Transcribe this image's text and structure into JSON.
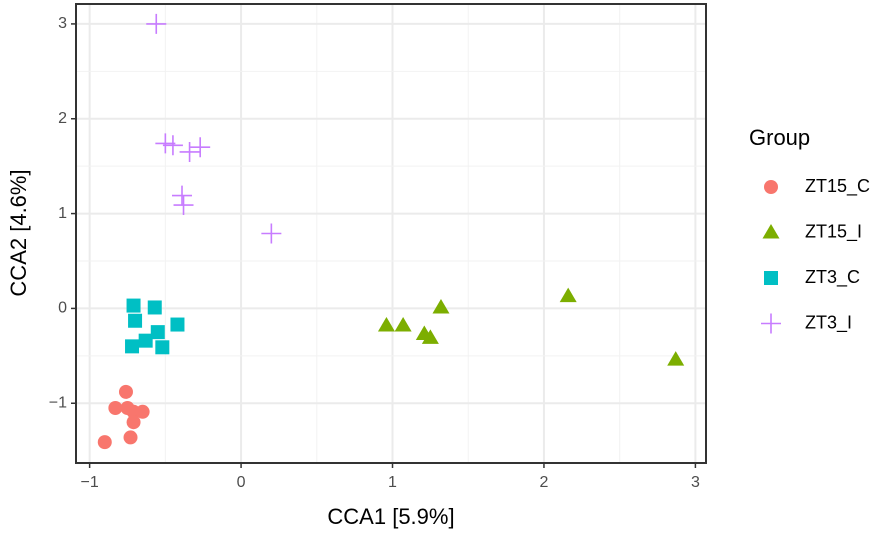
{
  "chart_data": {
    "type": "scatter",
    "xlabel": "CCA1   [5.9%]",
    "ylabel": "CCA2   [4.6%]",
    "xlim": [
      -1.09,
      3.07
    ],
    "ylim": [
      -1.63,
      3.21
    ],
    "xticks": [
      {
        "value": -1,
        "label": "−1"
      },
      0,
      1,
      2,
      3
    ],
    "yticks": [
      {
        "value": -1,
        "label": "−1"
      },
      0,
      1,
      2,
      3
    ],
    "grid": true,
    "legend_title": "Group",
    "series": [
      {
        "name": "ZT15_C",
        "color": "#F8766D",
        "marker": "circle",
        "x": [
          -0.76,
          -0.83,
          -0.75,
          -0.71,
          -0.65,
          -0.71,
          -0.73,
          -0.9
        ],
        "values": [
          -0.88,
          -1.05,
          -1.05,
          -1.09,
          -1.09,
          -1.2,
          -1.36,
          -1.41
        ]
      },
      {
        "name": "ZT15_I",
        "color": "#7CAE00",
        "marker": "triangle",
        "x": [
          0.96,
          1.07,
          1.21,
          1.25,
          1.32,
          2.16,
          2.87
        ],
        "values": [
          -0.18,
          -0.18,
          -0.27,
          -0.31,
          0.01,
          0.13,
          -0.54
        ]
      },
      {
        "name": "ZT3_C",
        "color": "#00BFC4",
        "marker": "square",
        "x": [
          -0.71,
          -0.57,
          -0.7,
          -0.42,
          -0.55,
          -0.63,
          -0.72,
          -0.52
        ],
        "values": [
          0.03,
          0.01,
          -0.13,
          -0.17,
          -0.25,
          -0.34,
          -0.4,
          -0.41
        ]
      },
      {
        "name": "ZT3_I",
        "color": "#C77CFF",
        "marker": "plus",
        "x": [
          -0.56,
          -0.5,
          -0.45,
          -0.34,
          -0.27,
          -0.39,
          -0.38,
          0.2
        ],
        "values": [
          3.0,
          1.74,
          1.72,
          1.65,
          1.7,
          1.19,
          1.09,
          0.79
        ]
      }
    ]
  }
}
